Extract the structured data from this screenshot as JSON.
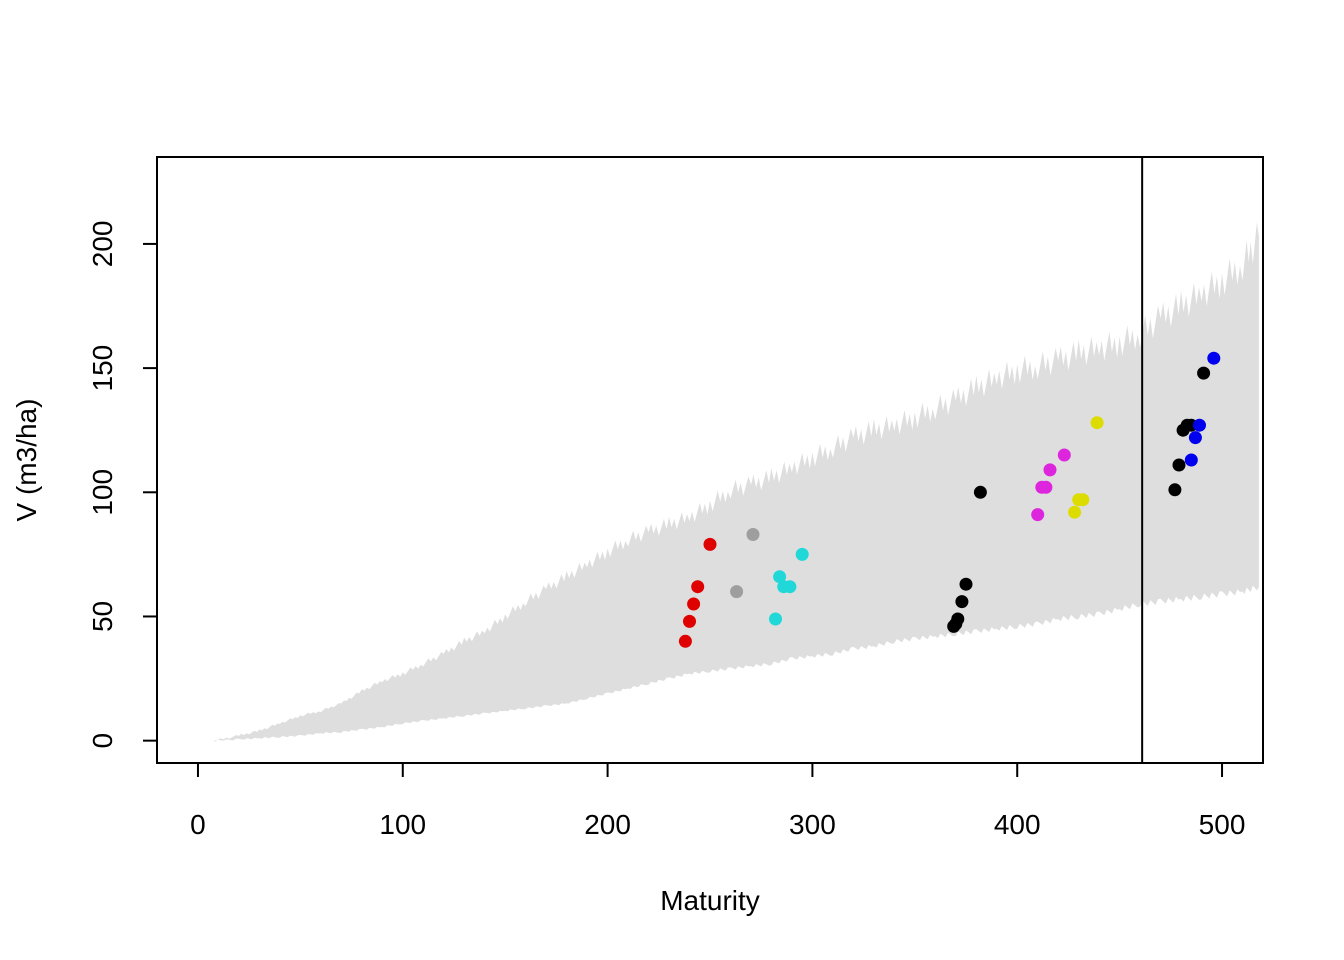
{
  "chart_data": {
    "type": "scatter",
    "title": "",
    "xlabel": "Maturity",
    "ylabel": "V (m3/ha)",
    "xlim": [
      -20,
      520
    ],
    "ylim": [
      -9,
      235
    ],
    "xticks": [
      0,
      100,
      200,
      300,
      400,
      500
    ],
    "yticks": [
      0,
      50,
      100,
      150,
      200
    ],
    "grid": false,
    "legend": "none",
    "vertical_line_x": 461,
    "envelope": {
      "color": "#dedede",
      "x": [
        8,
        20,
        30,
        40,
        50,
        60,
        70,
        80,
        90,
        100,
        110,
        120,
        130,
        140,
        150,
        160,
        170,
        180,
        190,
        200,
        210,
        220,
        230,
        240,
        250,
        260,
        270,
        280,
        290,
        300,
        310,
        320,
        330,
        340,
        350,
        360,
        370,
        380,
        390,
        400,
        410,
        420,
        430,
        440,
        450,
        460,
        470,
        480,
        490,
        500,
        510,
        518
      ],
      "upper": [
        0,
        2,
        4,
        7,
        10,
        12,
        15,
        20,
        24,
        27,
        31,
        35,
        40,
        44,
        50,
        56,
        61,
        66,
        71,
        76,
        81,
        84,
        87,
        90,
        95,
        101,
        103,
        106,
        110,
        114,
        118,
        122,
        125,
        127,
        130,
        134,
        137,
        142,
        146,
        149,
        151,
        153,
        156,
        158,
        160,
        164,
        170,
        175,
        180,
        185,
        192,
        203
      ],
      "lower": [
        0,
        0.5,
        1,
        1.5,
        2,
        3,
        3.5,
        4.5,
        5.5,
        7,
        8,
        9,
        10,
        11,
        12,
        13,
        14,
        15,
        17,
        19,
        21,
        23,
        25,
        27,
        28,
        29,
        30,
        31,
        33,
        34,
        35,
        37,
        38,
        40,
        41,
        42,
        43,
        44,
        45,
        46,
        47,
        49,
        50,
        51,
        53,
        55,
        56,
        57,
        58,
        59,
        60,
        62
      ]
    },
    "series": [
      {
        "color": "#df0000",
        "x": [
          238,
          240,
          242,
          244,
          250
        ],
        "y": [
          40,
          48,
          55,
          62,
          79
        ]
      },
      {
        "color": "#9e9e9e",
        "x": [
          263,
          271
        ],
        "y": [
          60,
          83
        ]
      },
      {
        "color": "#21d8d8",
        "x": [
          282,
          284,
          286,
          289,
          295
        ],
        "y": [
          49,
          66,
          62,
          62,
          75
        ]
      },
      {
        "color": "#000000",
        "x": [
          369,
          370,
          371,
          373,
          375,
          382
        ],
        "y": [
          46,
          47,
          49,
          56,
          63,
          100
        ]
      },
      {
        "color": "#de25de",
        "x": [
          410,
          412,
          414,
          416,
          423
        ],
        "y": [
          91,
          102,
          102,
          109,
          115
        ]
      },
      {
        "color": "#dcdc00",
        "x": [
          428,
          430,
          432,
          439
        ],
        "y": [
          92,
          97,
          97,
          128
        ]
      },
      {
        "color": "#000000",
        "x": [
          477,
          479,
          481,
          483,
          485,
          491
        ],
        "y": [
          101,
          111,
          125,
          127,
          127,
          148
        ]
      },
      {
        "color": "#0000ee",
        "x": [
          485,
          487,
          489,
          496
        ],
        "y": [
          113,
          122,
          127,
          154
        ]
      }
    ]
  }
}
